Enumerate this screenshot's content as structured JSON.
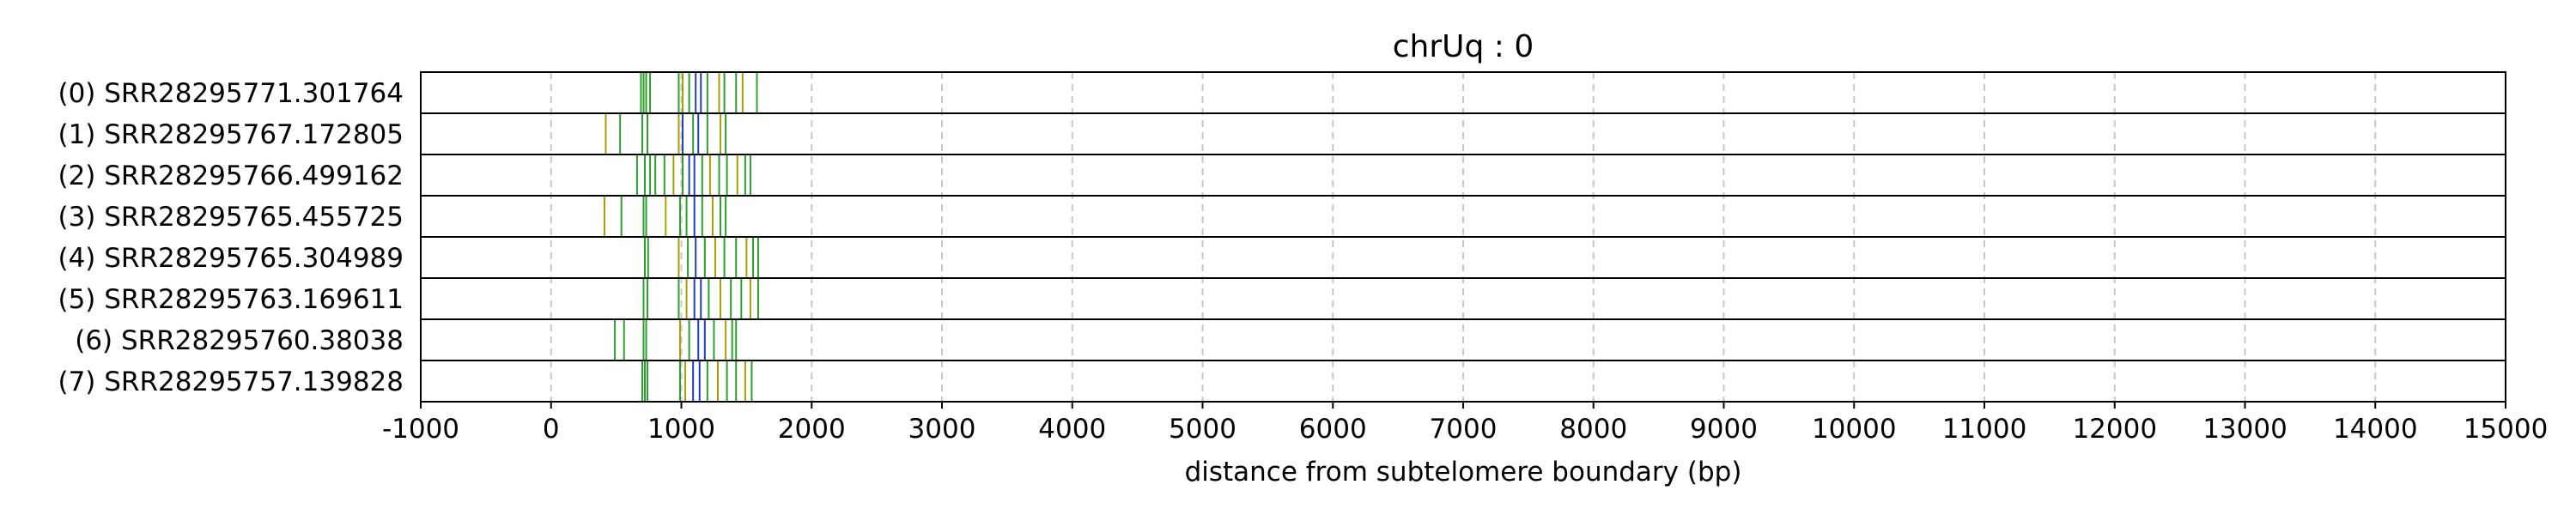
{
  "chart_data": {
    "type": "scatter",
    "title": "chrUq : 0",
    "xlabel": "distance from subtelomere boundary (bp)",
    "ylabel": "",
    "xlim": [
      -1000,
      15000
    ],
    "xticks": [
      "-1000",
      "0",
      "1000",
      "2000",
      "3000",
      "4000",
      "5000",
      "6000",
      "7000",
      "8000",
      "9000",
      "10000",
      "11000",
      "12000",
      "13000",
      "14000",
      "15000"
    ],
    "grid": "vertical dashed",
    "mark_colors": {
      "green": "#2ca02c",
      "blue": "#1f3fbf",
      "olive": "#a8a000"
    },
    "rows": [
      {
        "label": "(0) SRR28295771.301764",
        "marks": [
          {
            "x": 690,
            "c": "green"
          },
          {
            "x": 710,
            "c": "green"
          },
          {
            "x": 730,
            "c": "green"
          },
          {
            "x": 760,
            "c": "green"
          },
          {
            "x": 980,
            "c": "green"
          },
          {
            "x": 1010,
            "c": "olive"
          },
          {
            "x": 1060,
            "c": "green"
          },
          {
            "x": 1110,
            "c": "blue"
          },
          {
            "x": 1150,
            "c": "blue"
          },
          {
            "x": 1200,
            "c": "green"
          },
          {
            "x": 1290,
            "c": "olive"
          },
          {
            "x": 1330,
            "c": "green"
          },
          {
            "x": 1420,
            "c": "green"
          },
          {
            "x": 1470,
            "c": "olive"
          },
          {
            "x": 1580,
            "c": "green"
          }
        ]
      },
      {
        "label": "(1) SRR28295767.172805",
        "marks": [
          {
            "x": 420,
            "c": "olive"
          },
          {
            "x": 530,
            "c": "green"
          },
          {
            "x": 700,
            "c": "green"
          },
          {
            "x": 740,
            "c": "green"
          },
          {
            "x": 980,
            "c": "olive"
          },
          {
            "x": 1010,
            "c": "blue"
          },
          {
            "x": 1090,
            "c": "green"
          },
          {
            "x": 1130,
            "c": "blue"
          },
          {
            "x": 1200,
            "c": "green"
          },
          {
            "x": 1300,
            "c": "olive"
          },
          {
            "x": 1340,
            "c": "green"
          }
        ]
      },
      {
        "label": "(2) SRR28295766.499162",
        "marks": [
          {
            "x": 660,
            "c": "green"
          },
          {
            "x": 720,
            "c": "green"
          },
          {
            "x": 760,
            "c": "green"
          },
          {
            "x": 800,
            "c": "green"
          },
          {
            "x": 870,
            "c": "green"
          },
          {
            "x": 940,
            "c": "olive"
          },
          {
            "x": 1010,
            "c": "green"
          },
          {
            "x": 1060,
            "c": "blue"
          },
          {
            "x": 1100,
            "c": "blue"
          },
          {
            "x": 1160,
            "c": "green"
          },
          {
            "x": 1220,
            "c": "olive"
          },
          {
            "x": 1290,
            "c": "green"
          },
          {
            "x": 1350,
            "c": "green"
          },
          {
            "x": 1430,
            "c": "olive"
          },
          {
            "x": 1490,
            "c": "green"
          },
          {
            "x": 1530,
            "c": "green"
          }
        ]
      },
      {
        "label": "(3) SRR28295765.455725",
        "marks": [
          {
            "x": 410,
            "c": "olive"
          },
          {
            "x": 540,
            "c": "green"
          },
          {
            "x": 710,
            "c": "green"
          },
          {
            "x": 730,
            "c": "green"
          },
          {
            "x": 880,
            "c": "olive"
          },
          {
            "x": 990,
            "c": "green"
          },
          {
            "x": 1040,
            "c": "green"
          },
          {
            "x": 1100,
            "c": "blue"
          },
          {
            "x": 1160,
            "c": "green"
          },
          {
            "x": 1240,
            "c": "olive"
          },
          {
            "x": 1300,
            "c": "green"
          },
          {
            "x": 1340,
            "c": "green"
          }
        ]
      },
      {
        "label": "(4) SRR28295765.304989",
        "marks": [
          {
            "x": 720,
            "c": "green"
          },
          {
            "x": 745,
            "c": "green"
          },
          {
            "x": 980,
            "c": "olive"
          },
          {
            "x": 1050,
            "c": "green"
          },
          {
            "x": 1110,
            "c": "blue"
          },
          {
            "x": 1180,
            "c": "green"
          },
          {
            "x": 1260,
            "c": "olive"
          },
          {
            "x": 1330,
            "c": "green"
          },
          {
            "x": 1420,
            "c": "green"
          },
          {
            "x": 1500,
            "c": "olive"
          },
          {
            "x": 1550,
            "c": "green"
          },
          {
            "x": 1590,
            "c": "green"
          }
        ]
      },
      {
        "label": "(5) SRR28295763.169611",
        "marks": [
          {
            "x": 710,
            "c": "green"
          },
          {
            "x": 740,
            "c": "green"
          },
          {
            "x": 980,
            "c": "green"
          },
          {
            "x": 1040,
            "c": "olive"
          },
          {
            "x": 1100,
            "c": "blue"
          },
          {
            "x": 1150,
            "c": "blue"
          },
          {
            "x": 1210,
            "c": "green"
          },
          {
            "x": 1300,
            "c": "olive"
          },
          {
            "x": 1380,
            "c": "green"
          },
          {
            "x": 1460,
            "c": "green"
          },
          {
            "x": 1530,
            "c": "olive"
          },
          {
            "x": 1590,
            "c": "green"
          }
        ]
      },
      {
        "label": "(6) SRR28295760.38038",
        "marks": [
          {
            "x": 490,
            "c": "green"
          },
          {
            "x": 560,
            "c": "green"
          },
          {
            "x": 710,
            "c": "green"
          },
          {
            "x": 730,
            "c": "green"
          },
          {
            "x": 990,
            "c": "olive"
          },
          {
            "x": 1060,
            "c": "green"
          },
          {
            "x": 1130,
            "c": "blue"
          },
          {
            "x": 1180,
            "c": "blue"
          },
          {
            "x": 1250,
            "c": "green"
          },
          {
            "x": 1340,
            "c": "olive"
          },
          {
            "x": 1390,
            "c": "green"
          },
          {
            "x": 1420,
            "c": "green"
          }
        ]
      },
      {
        "label": "(7) SRR28295757.139828",
        "marks": [
          {
            "x": 700,
            "c": "green"
          },
          {
            "x": 720,
            "c": "green"
          },
          {
            "x": 740,
            "c": "green"
          },
          {
            "x": 990,
            "c": "green"
          },
          {
            "x": 1030,
            "c": "olive"
          },
          {
            "x": 1090,
            "c": "blue"
          },
          {
            "x": 1140,
            "c": "blue"
          },
          {
            "x": 1200,
            "c": "green"
          },
          {
            "x": 1280,
            "c": "olive"
          },
          {
            "x": 1350,
            "c": "green"
          },
          {
            "x": 1420,
            "c": "green"
          },
          {
            "x": 1490,
            "c": "olive"
          },
          {
            "x": 1540,
            "c": "green"
          }
        ]
      }
    ]
  }
}
